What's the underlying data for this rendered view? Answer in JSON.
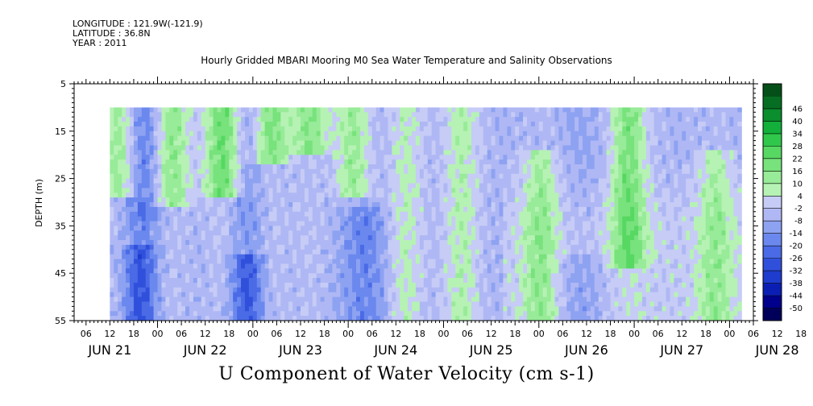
{
  "header": {
    "longitude": "LONGITUDE : 121.9W(-121.9)",
    "latitude": "LATITUDE : 36.8N",
    "year": "YEAR : 2011",
    "title": "Hourly Gridded MBARI Mooring M0 Sea Water Temperature and Salinity Observations"
  },
  "footer": {
    "variable_label": "U Component of Water Velocity (cm s-1)"
  },
  "chart_data": {
    "type": "heatmap",
    "title": "Hourly Gridded MBARI Mooring M0 Sea Water Temperature and Salinity Observations",
    "xlabel": "",
    "ylabel": "DEPTH (m)",
    "colorbar_label": "U Component of Water Velocity (cm s-1)",
    "ylim": [
      5,
      55
    ],
    "yticks": [
      5,
      15,
      25,
      35,
      45,
      55
    ],
    "xlim_hours_from_jun21_00": [
      3,
      174
    ],
    "data_start_hour": 12,
    "data_end_hour": 171,
    "data_depth_range": [
      10,
      55
    ],
    "hour_ticks": [
      "06",
      "12",
      "18",
      "00",
      "06",
      "12",
      "18",
      "00",
      "06",
      "12",
      "18",
      "00",
      "06",
      "12",
      "18",
      "00",
      "06",
      "12",
      "18",
      "00",
      "06",
      "12",
      "18",
      "00",
      "06",
      "12",
      "18",
      "00",
      "06",
      "12",
      "18",
      "00"
    ],
    "day_labels": [
      "JUN 21",
      "JUN 22",
      "JUN 23",
      "JUN 24",
      "JUN 25",
      "JUN 26",
      "JUN 27",
      "JUN 28"
    ],
    "colorbar_levels": [
      -50,
      -44,
      -38,
      -32,
      -26,
      -20,
      -14,
      -8,
      -2,
      4,
      10,
      16,
      22,
      28,
      34,
      40,
      46
    ],
    "colorbar_colors": [
      "#00005a",
      "#00008c",
      "#0a1eb4",
      "#1e3ccd",
      "#3050dc",
      "#4a6ae6",
      "#6a88ee",
      "#8ea2f2",
      "#afb8f4",
      "#c6ccf6",
      "#b6f2b4",
      "#98eb98",
      "#78e27c",
      "#56d862",
      "#30c84a",
      "#12b03a",
      "#0a8e2e",
      "#066e22",
      "#045018"
    ],
    "field_description_samples": [
      {
        "hour": 14,
        "depth_top": 10,
        "depth_bottom": 25,
        "value": 12
      },
      {
        "hour": 22,
        "depth_top": 10,
        "depth_bottom": 30,
        "value": -14
      },
      {
        "hour": 27,
        "depth_top": 10,
        "depth_bottom": 27,
        "value": 14
      },
      {
        "hour": 40,
        "depth_top": 10,
        "depth_bottom": 25,
        "value": 20
      },
      {
        "hour": 52,
        "depth_top": 10,
        "depth_bottom": 18,
        "value": 16
      },
      {
        "hour": 62,
        "depth_top": 10,
        "depth_bottom": 16,
        "value": 14
      },
      {
        "hour": 73,
        "depth_top": 10,
        "depth_bottom": 25,
        "value": 14
      },
      {
        "hour": 86,
        "depth_top": 10,
        "depth_bottom": 55,
        "value": 4
      },
      {
        "hour": 100,
        "depth_top": 10,
        "depth_bottom": 55,
        "value": 6
      },
      {
        "hour": 120,
        "depth_top": 20,
        "depth_bottom": 55,
        "value": 8
      },
      {
        "hour": 142,
        "depth_top": 10,
        "depth_bottom": 40,
        "value": 16
      },
      {
        "hour": 164,
        "depth_top": 20,
        "depth_bottom": 55,
        "value": 6
      }
    ]
  }
}
